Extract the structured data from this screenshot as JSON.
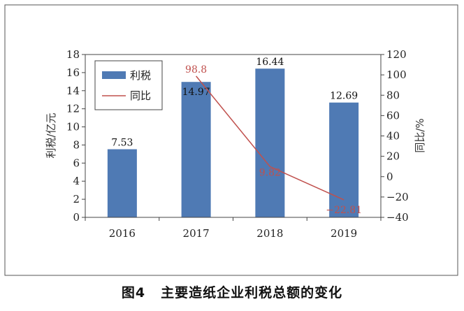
{
  "figure_caption": {
    "label": "图4",
    "title": "主要造纸企业利税总额的变化"
  },
  "chart_data": {
    "type": "bar",
    "categories": [
      "2016",
      "2017",
      "2018",
      "2019"
    ],
    "series": [
      {
        "name": "利税",
        "type": "bar",
        "axis": "left",
        "values": [
          7.53,
          14.97,
          16.44,
          12.69
        ],
        "data_labels": [
          "7.53",
          "14.97",
          "16.44",
          "12.69"
        ],
        "color": "#4f7ab4"
      },
      {
        "name": "同比",
        "type": "line",
        "axis": "right",
        "values": [
          null,
          98.8,
          9.82,
          -22.81
        ],
        "data_labels": [
          "",
          "98.8",
          "9.82",
          "−22.81"
        ],
        "color": "#c0504d"
      }
    ],
    "ylabel": "利税/亿元",
    "ylim": [
      0,
      18
    ],
    "yticks": [
      "0",
      "2",
      "4",
      "6",
      "8",
      "10",
      "12",
      "14",
      "16",
      "18"
    ],
    "y2label": "同比/%",
    "y2lim": [
      -40,
      120
    ],
    "y2ticks": [
      "−40",
      "−20",
      "0",
      "20",
      "40",
      "60",
      "80",
      "100",
      "120"
    ],
    "grid": false,
    "legend_position": "top-left"
  }
}
